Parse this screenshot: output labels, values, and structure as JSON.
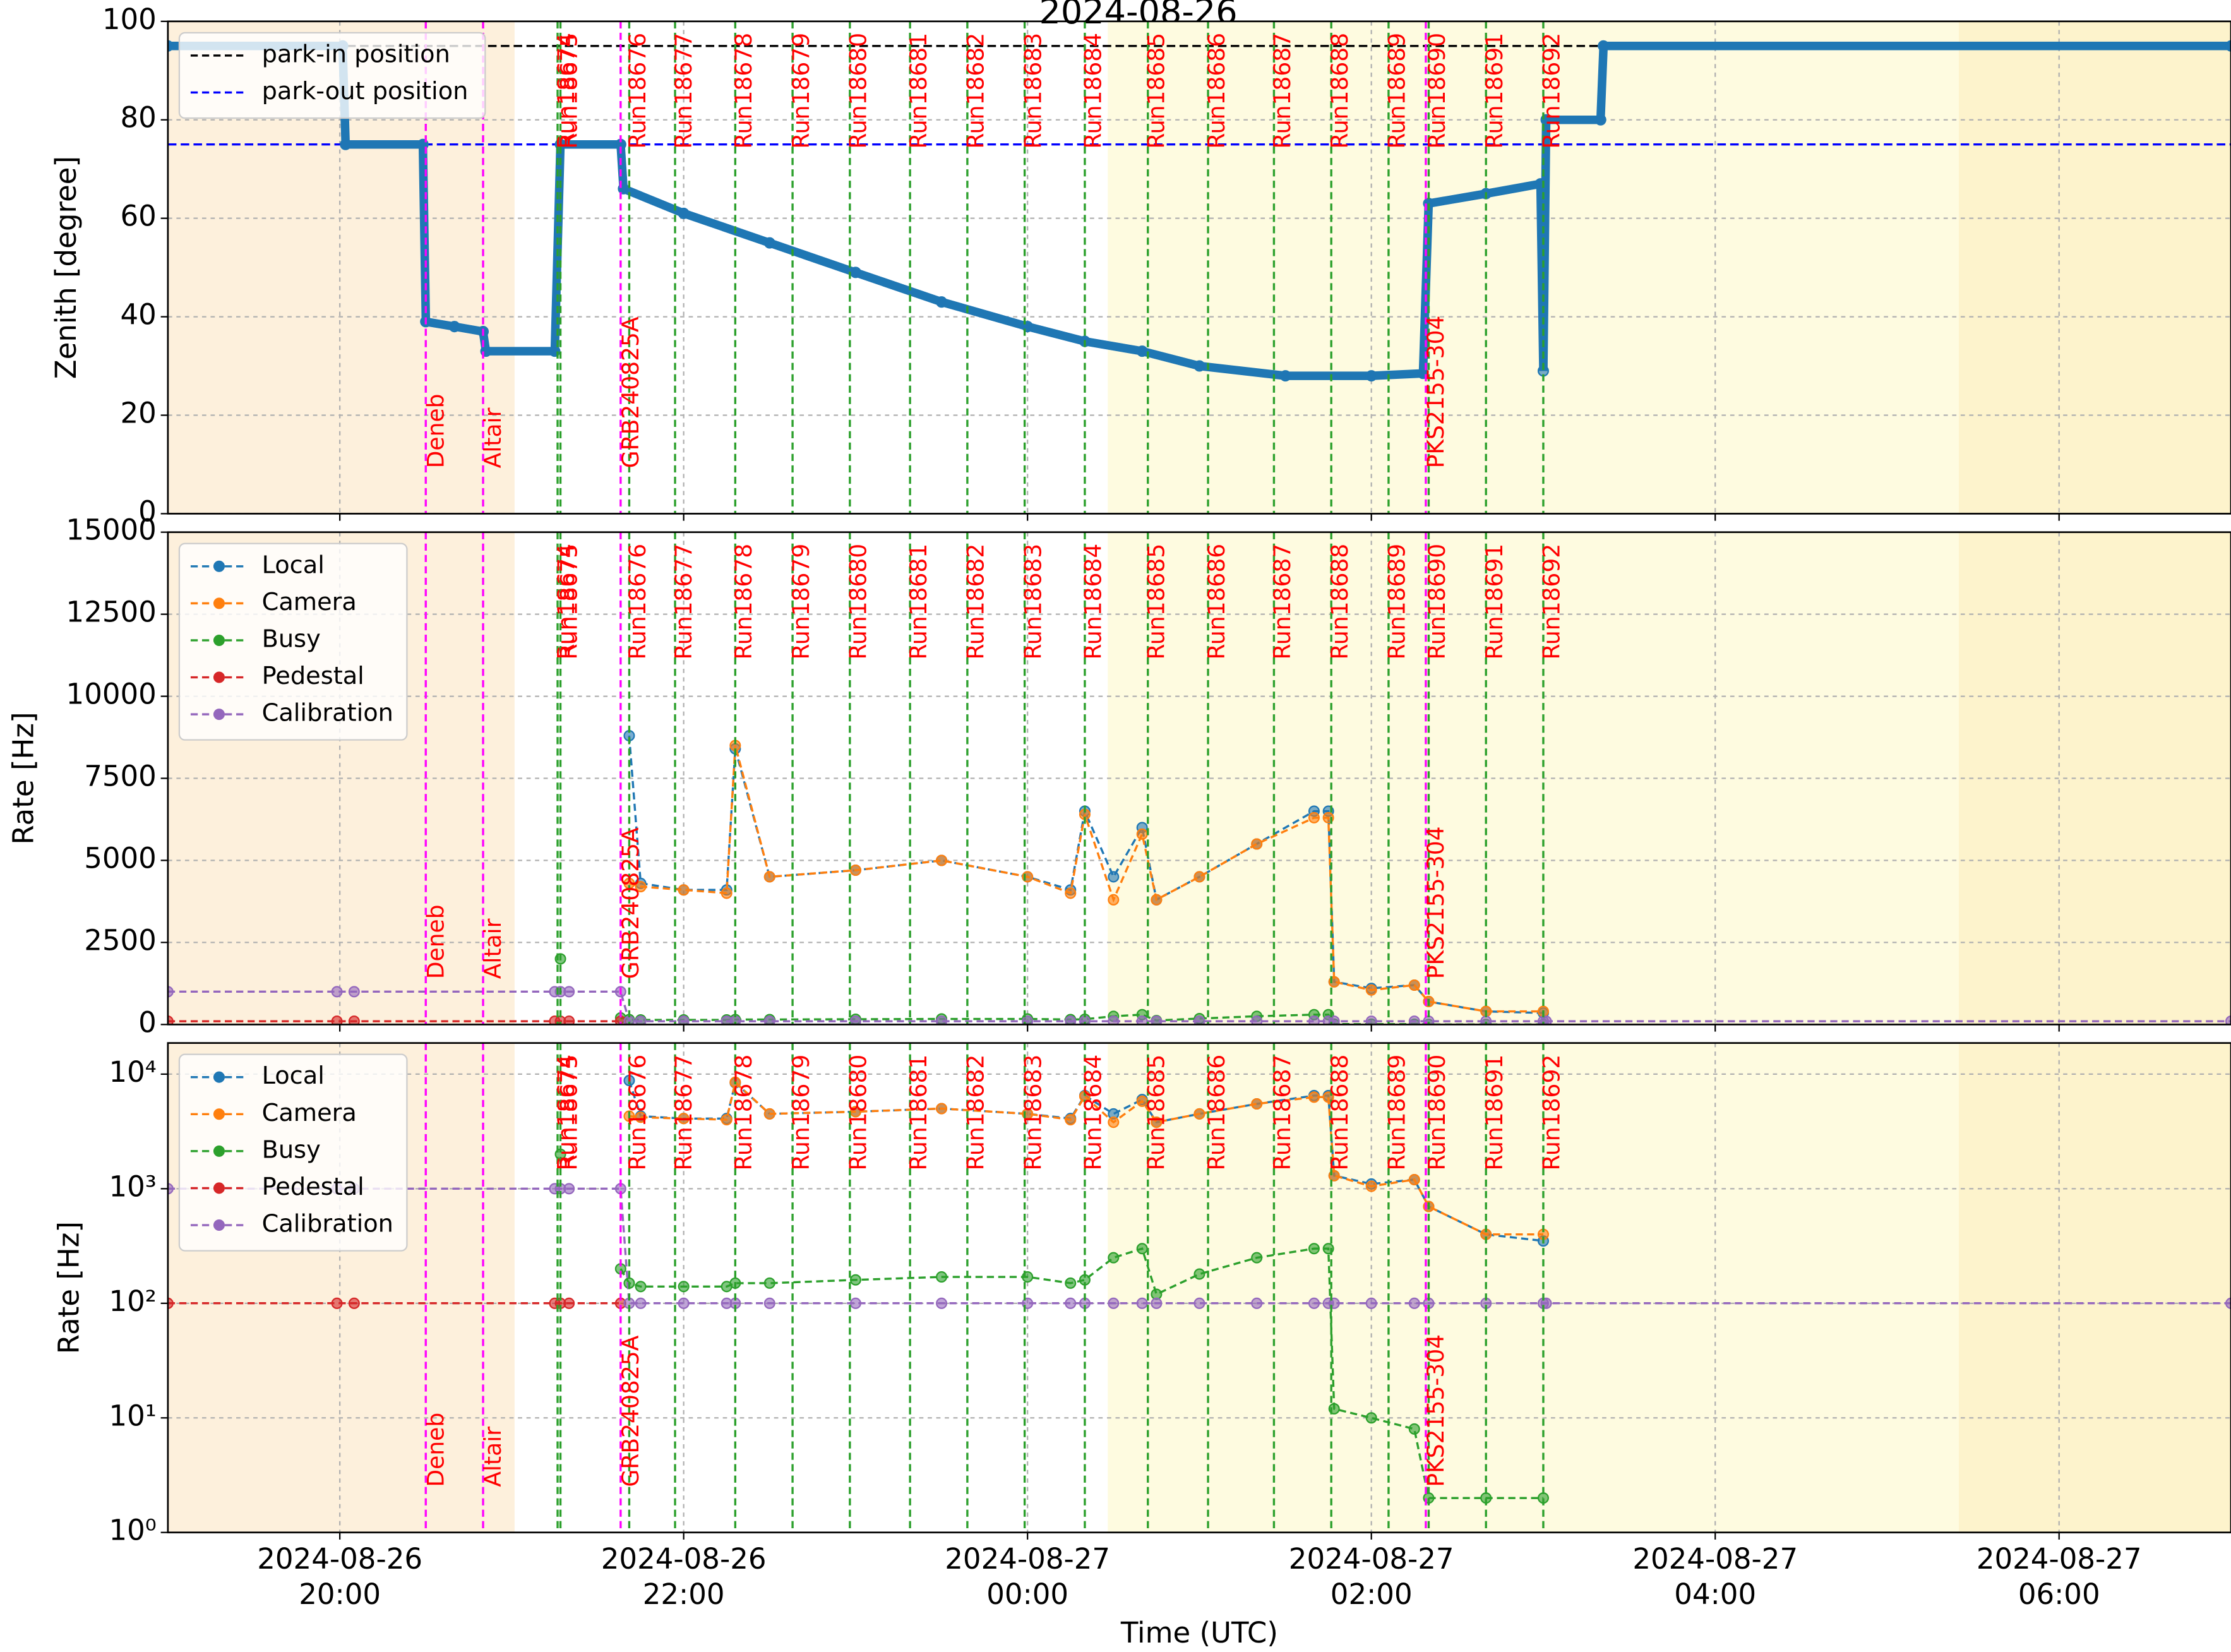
{
  "chart_data": [
    {
      "type": "line",
      "title": "2024-08-26",
      "ylabel": "Zenith [degree]",
      "ylim": [
        0,
        100
      ],
      "yticks": [
        0,
        20,
        40,
        60,
        80,
        100
      ],
      "grid": true,
      "legend": "upper left",
      "x": [
        "2024-08-26T19:00",
        "2024-08-26T20:01",
        "2024-08-26T20:02",
        "2024-08-26T20:29",
        "2024-08-26T20:30",
        "2024-08-26T20:40",
        "2024-08-26T20:50",
        "2024-08-26T20:51",
        "2024-08-26T21:15",
        "2024-08-26T21:17",
        "2024-08-26T21:38",
        "2024-08-26T21:39",
        "2024-08-26T22:00",
        "2024-08-26T22:30",
        "2024-08-26T23:00",
        "2024-08-26T23:30",
        "2024-08-27T00:00",
        "2024-08-27T00:20",
        "2024-08-27T00:40",
        "2024-08-27T01:00",
        "2024-08-27T01:30",
        "2024-08-27T02:00",
        "2024-08-27T02:18",
        "2024-08-27T02:20",
        "2024-08-27T02:40",
        "2024-08-27T02:59",
        "2024-08-27T03:00",
        "2024-08-27T03:01",
        "2024-08-27T03:20",
        "2024-08-27T03:21",
        "2024-08-27T07:00"
      ],
      "series": [
        {
          "color": "#1f77b4",
          "values": [
            95,
            95,
            75,
            75,
            39,
            38,
            37,
            33,
            33,
            75,
            75,
            66,
            61,
            55,
            49,
            43,
            38,
            35,
            33,
            30,
            28,
            28,
            28.5,
            63,
            65,
            67,
            29,
            80,
            80,
            95,
            95
          ]
        }
      ],
      "reference_lines": [
        {
          "name": "park-in position",
          "value": 95,
          "color": "#000000"
        },
        {
          "name": "park-out position",
          "value": 75,
          "color": "#0000ff"
        }
      ]
    },
    {
      "type": "line",
      "ylabel": "Rate [Hz]",
      "grid": true,
      "legend": "upper left",
      "panels": [
        {
          "log": false,
          "ylim": [
            0,
            15000
          ],
          "yticks": [
            0,
            2500,
            5000,
            7500,
            10000,
            12500,
            15000
          ]
        },
        {
          "log": true,
          "ylim": [
            1,
            18700
          ],
          "yticks": [
            {
              "value": 1,
              "label": "10⁰"
            },
            {
              "value": 10,
              "label": "10¹"
            },
            {
              "value": 100,
              "label": "10²"
            },
            {
              "value": 1000,
              "label": "10³"
            },
            {
              "value": 10000,
              "label": "10⁴"
            }
          ]
        }
      ],
      "x": [
        "2024-08-26T19:00",
        "2024-08-26T19:59",
        "2024-08-26T20:05",
        "2024-08-26T21:15",
        "2024-08-26T21:17",
        "2024-08-26T21:20",
        "2024-08-26T21:38",
        "2024-08-26T21:41",
        "2024-08-26T21:45",
        "2024-08-26T22:00",
        "2024-08-26T22:15",
        "2024-08-26T22:18",
        "2024-08-26T22:30",
        "2024-08-26T23:00",
        "2024-08-26T23:30",
        "2024-08-27T00:00",
        "2024-08-27T00:15",
        "2024-08-27T00:20",
        "2024-08-27T00:30",
        "2024-08-27T00:40",
        "2024-08-27T00:45",
        "2024-08-27T01:00",
        "2024-08-27T01:20",
        "2024-08-27T01:40",
        "2024-08-27T01:45",
        "2024-08-27T01:47",
        "2024-08-27T02:00",
        "2024-08-27T02:15",
        "2024-08-27T02:20",
        "2024-08-27T02:40",
        "2024-08-27T03:00",
        "2024-08-27T03:01",
        "2024-08-27T07:00"
      ],
      "series": [
        {
          "name": "Local",
          "color": "#1f77b4",
          "values": [
            null,
            null,
            null,
            null,
            null,
            null,
            null,
            8800,
            4300,
            4100,
            4100,
            8400,
            4500,
            4700,
            5000,
            4500,
            4100,
            6500,
            4500,
            6000,
            3800,
            4500,
            5500,
            6500,
            6500,
            1300,
            1100,
            1200,
            700,
            400,
            350,
            null,
            null
          ]
        },
        {
          "name": "Camera",
          "color": "#ff7f0e",
          "values": [
            null,
            null,
            null,
            null,
            null,
            null,
            null,
            4300,
            4200,
            4100,
            4000,
            8500,
            4500,
            4700,
            5000,
            4500,
            4000,
            6400,
            3800,
            5800,
            3800,
            4500,
            5500,
            6300,
            6300,
            1300,
            1050,
            1200,
            700,
            400,
            400,
            null,
            null
          ]
        },
        {
          "name": "Busy",
          "color": "#2ca02c",
          "values": [
            null,
            null,
            null,
            null,
            2000,
            null,
            200,
            150,
            140,
            140,
            140,
            150,
            150,
            160,
            170,
            170,
            150,
            160,
            250,
            300,
            120,
            180,
            250,
            300,
            300,
            12,
            10,
            8,
            2,
            2,
            2,
            null,
            null
          ]
        },
        {
          "name": "Pedestal",
          "color": "#d62728",
          "values": [
            100,
            100,
            100,
            100,
            100,
            100,
            100,
            null,
            null,
            null,
            null,
            null,
            null,
            null,
            null,
            null,
            null,
            null,
            null,
            null,
            null,
            null,
            null,
            null,
            null,
            null,
            null,
            null,
            null,
            null,
            null,
            null,
            null
          ]
        },
        {
          "name": "Calibration",
          "color": "#9467bd",
          "values": [
            1000,
            1000,
            1000,
            1000,
            1000,
            1000,
            1000,
            100,
            100,
            100,
            100,
            100,
            100,
            100,
            100,
            100,
            100,
            100,
            100,
            100,
            100,
            100,
            100,
            100,
            100,
            100,
            100,
            100,
            100,
            100,
            100,
            100,
            100
          ]
        }
      ]
    }
  ],
  "time_axis": {
    "xlabel": "Time (UTC)",
    "xlim": [
      "2024-08-26T19:00",
      "2024-08-27T07:00"
    ],
    "xticks": [
      {
        "value": "2024-08-26T20:00",
        "label": [
          "2024-08-26",
          "20:00"
        ]
      },
      {
        "value": "2024-08-26T22:00",
        "label": [
          "2024-08-26",
          "22:00"
        ]
      },
      {
        "value": "2024-08-27T00:00",
        "label": [
          "2024-08-27",
          "00:00"
        ]
      },
      {
        "value": "2024-08-27T02:00",
        "label": [
          "2024-08-27",
          "02:00"
        ]
      },
      {
        "value": "2024-08-27T04:00",
        "label": [
          "2024-08-27",
          "04:00"
        ]
      },
      {
        "value": "2024-08-27T06:00",
        "label": [
          "2024-08-27",
          "06:00"
        ]
      }
    ],
    "bands": [
      {
        "x": [
          "2024-08-26T19:00",
          "2024-08-26T21:01"
        ],
        "color": "#fdf0dc"
      },
      {
        "x": [
          "2024-08-27T00:28",
          "2024-08-27T05:25"
        ],
        "color": "#fefbe0"
      },
      {
        "x": [
          "2024-08-27T05:25",
          "2024-08-27T07:00"
        ],
        "color": "#fdf3cc"
      }
    ],
    "run_color": "#2ca02c",
    "source_color": "#ff00ff",
    "label_color": "#ff0000",
    "runs": [
      {
        "name": "Run18674",
        "x": "2024-08-26T21:16"
      },
      {
        "name": "Run18675",
        "x": "2024-08-26T21:17"
      },
      {
        "name": "Run18676",
        "x": "2024-08-26T21:41"
      },
      {
        "name": "Run18677",
        "x": "2024-08-26T21:57"
      },
      {
        "name": "Run18678",
        "x": "2024-08-26T22:18"
      },
      {
        "name": "Run18679",
        "x": "2024-08-26T22:38"
      },
      {
        "name": "Run18680",
        "x": "2024-08-26T22:58"
      },
      {
        "name": "Run18681",
        "x": "2024-08-26T23:19"
      },
      {
        "name": "Run18682",
        "x": "2024-08-26T23:39"
      },
      {
        "name": "Run18683",
        "x": "2024-08-26T23:59"
      },
      {
        "name": "Run18684",
        "x": "2024-08-27T00:20"
      },
      {
        "name": "Run18685",
        "x": "2024-08-27T00:42"
      },
      {
        "name": "Run18686",
        "x": "2024-08-27T01:03"
      },
      {
        "name": "Run18687",
        "x": "2024-08-27T01:26"
      },
      {
        "name": "Run18688",
        "x": "2024-08-27T01:46"
      },
      {
        "name": "Run18689",
        "x": "2024-08-27T02:06"
      },
      {
        "name": "Run18690",
        "x": "2024-08-27T02:20"
      },
      {
        "name": "Run18691",
        "x": "2024-08-27T02:40"
      },
      {
        "name": "Run18692",
        "x": "2024-08-27T03:00"
      }
    ],
    "sources": [
      {
        "name": "Deneb",
        "x": "2024-08-26T20:30"
      },
      {
        "name": "Altair",
        "x": "2024-08-26T20:50"
      },
      {
        "name": "GRB240825A",
        "x": "2024-08-26T21:38"
      },
      {
        "name": "PKS2155-304",
        "x": "2024-08-27T02:19"
      }
    ]
  }
}
